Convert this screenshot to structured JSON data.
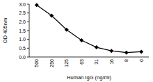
{
  "chart_data": {
    "type": "line",
    "x_label": "Human IgG (ng/ml)",
    "y_label": "OD 405nm",
    "categories": [
      "500",
      "250",
      "125",
      "63",
      "31",
      "16",
      "8",
      "0"
    ],
    "values": [
      2.95,
      2.35,
      1.55,
      0.95,
      0.55,
      0.35,
      0.25,
      0.3
    ],
    "color": "#000000",
    "marker": "diamond",
    "ylim": [
      0,
      3
    ],
    "yticks": [
      {
        "value": 0,
        "label": "0.0"
      },
      0.5,
      {
        "value": 1,
        "label": "1.0"
      },
      1.5,
      {
        "value": 2,
        "label": "2.0"
      },
      2.5,
      {
        "value": 3,
        "label": "3.0"
      }
    ],
    "grid": false
  }
}
